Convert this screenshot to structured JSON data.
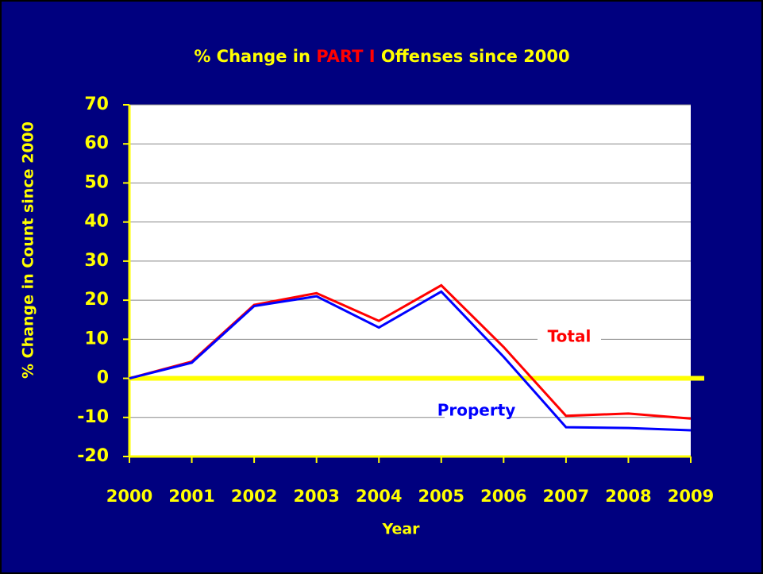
{
  "chart_data": {
    "type": "line",
    "title_parts": [
      "% Change in ",
      "PART I",
      " Offenses since 2000"
    ],
    "title_colors": [
      "#ffff00",
      "#ff0000",
      "#ffff00"
    ],
    "x_label": "Year",
    "y_label": "% Change in Count since 2000",
    "categories": [
      "2000",
      "2001",
      "2002",
      "2003",
      "2004",
      "2005",
      "2006",
      "2007",
      "2008",
      "2009"
    ],
    "series": [
      {
        "name": "Total",
        "color": "#ff0000",
        "values": [
          0,
          4.3,
          18.8,
          21.8,
          14.7,
          23.8,
          8,
          -9.6,
          -9,
          -10.3
        ]
      },
      {
        "name": "Property",
        "color": "#0000ff",
        "values": [
          0,
          4,
          18.5,
          21,
          13,
          22.2,
          5.5,
          -12.5,
          -12.7,
          -13.3
        ]
      }
    ],
    "ylim": [
      -20,
      70
    ],
    "yticks": [
      -20,
      -10,
      0,
      10,
      20,
      30,
      40,
      50,
      60,
      70
    ],
    "grid": true
  }
}
